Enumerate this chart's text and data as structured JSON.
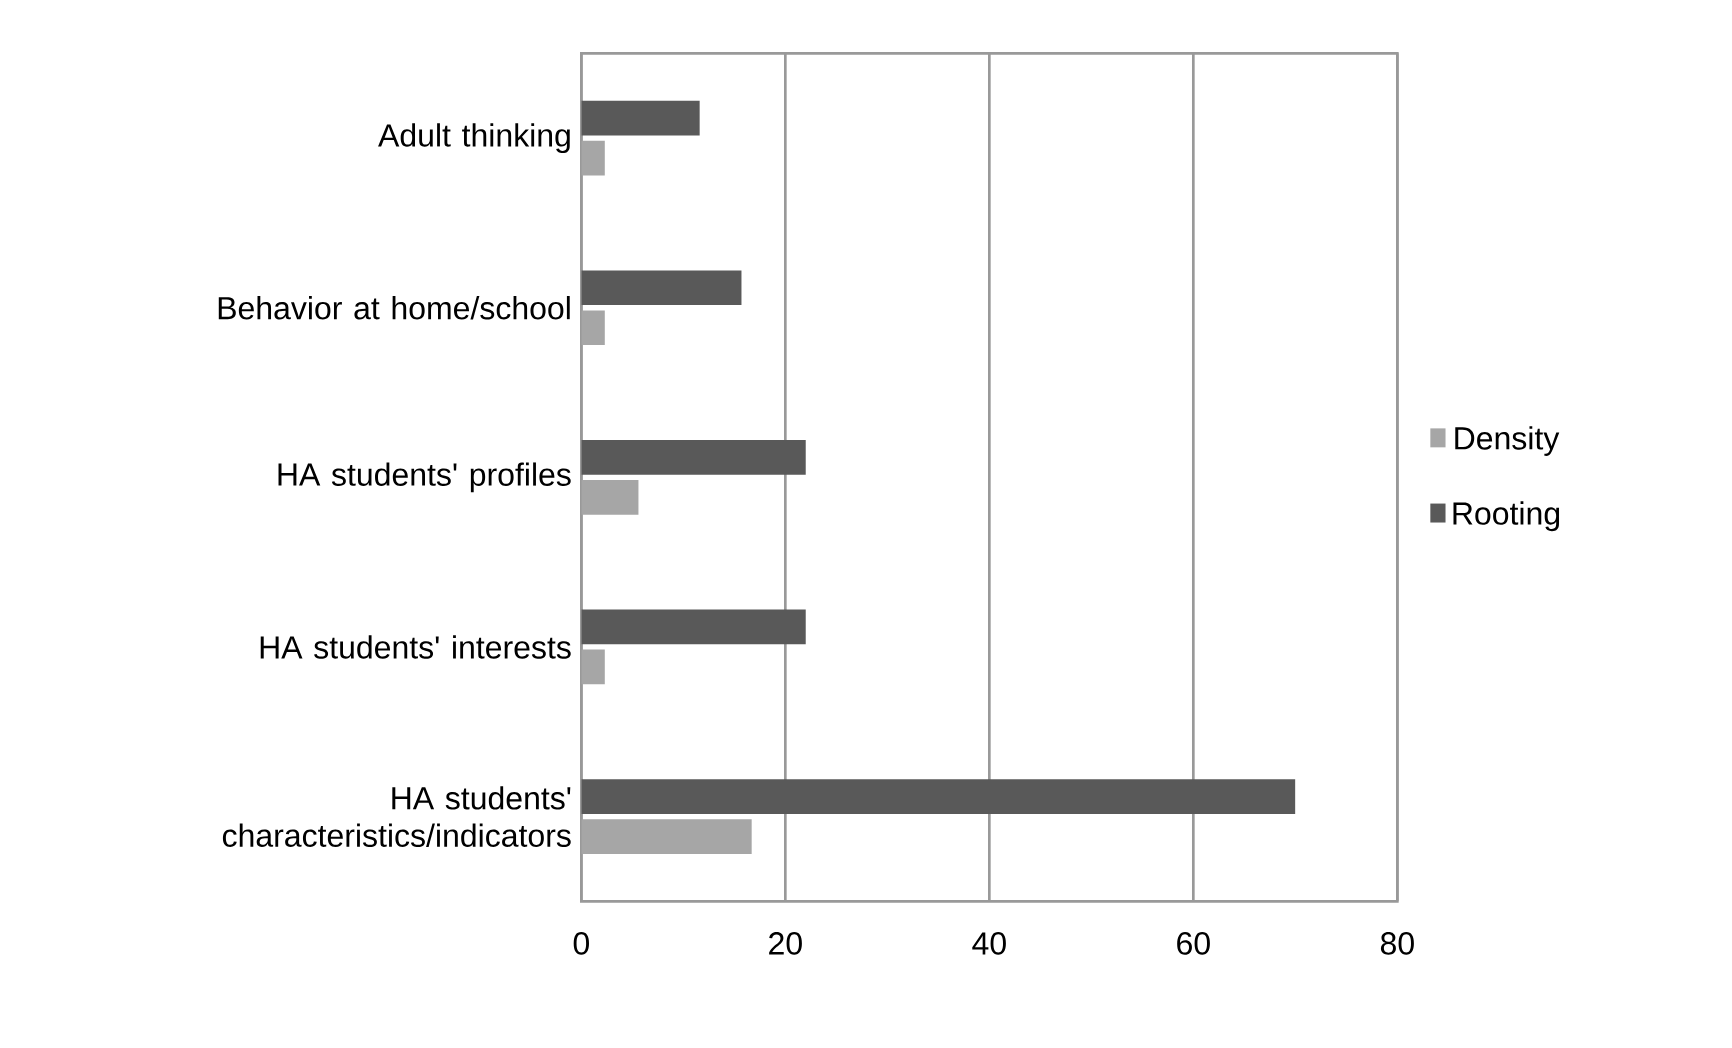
{
  "chart_data": {
    "type": "bar",
    "orientation": "horizontal",
    "categories": [
      "Adult thinking",
      "Behavior at home/school",
      "HA students' profiles",
      "HA students' interests",
      "HA students' characteristics/indicators"
    ],
    "series": [
      {
        "name": "Density",
        "color": "#a6a6a6",
        "values": [
          2.3,
          2.3,
          5.6,
          2.3,
          16.7
        ]
      },
      {
        "name": "Rooting",
        "color": "#595959",
        "values": [
          11.6,
          15.7,
          22,
          22,
          70
        ]
      }
    ],
    "xlim": [
      0,
      80
    ],
    "xticks": [
      0,
      20,
      40,
      60,
      80
    ],
    "grid": "x",
    "legend": "right"
  }
}
